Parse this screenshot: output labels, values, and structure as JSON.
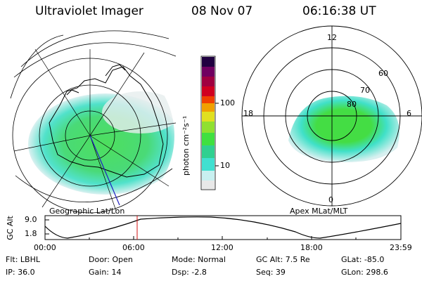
{
  "header": {
    "instrument": "Ultraviolet Imager",
    "date": "08 Nov 07",
    "time": "06:16:38 UT"
  },
  "left_panel": {
    "caption": "Geographic Lat/Lon"
  },
  "right_panel": {
    "caption": "Apex MLat/MLT",
    "mlt_labels": [
      "12",
      "18",
      "6",
      "0"
    ],
    "lat_labels": [
      "60",
      "70",
      "80"
    ]
  },
  "colorbar": {
    "unit_label": "photon cm⁻²s⁻¹",
    "ticks": [
      "100",
      "10"
    ],
    "scale": "log",
    "colors": [
      "#e8e8e8",
      "#c8f0f0",
      "#40e0d0",
      "#30d090",
      "#40e040",
      "#90e030",
      "#e0e020",
      "#f0a000",
      "#f04000",
      "#d00020",
      "#a00040",
      "#700060",
      "#200040"
    ]
  },
  "altitude_plot": {
    "ylabel": "GC Alt",
    "yticks": [
      "9.0",
      "1.8"
    ],
    "xticks": [
      "00:00",
      "06:00",
      "12:00",
      "18:00",
      "23:59"
    ],
    "current_time_marker": "06:16",
    "marker_color": "#d01010"
  },
  "info": {
    "flt": "Flt: LBHL",
    "door": "Door: Open",
    "mode": "Mode: Normal",
    "gc_alt": "GC Alt: 7.5 Re",
    "glat": "GLat: -85.0",
    "ip": "IP: 36.0",
    "gain": "Gain: 14",
    "dsp": "Dsp:     -2.8",
    "seq": "Seq: 39",
    "glon": "GLon: 298.6"
  }
}
